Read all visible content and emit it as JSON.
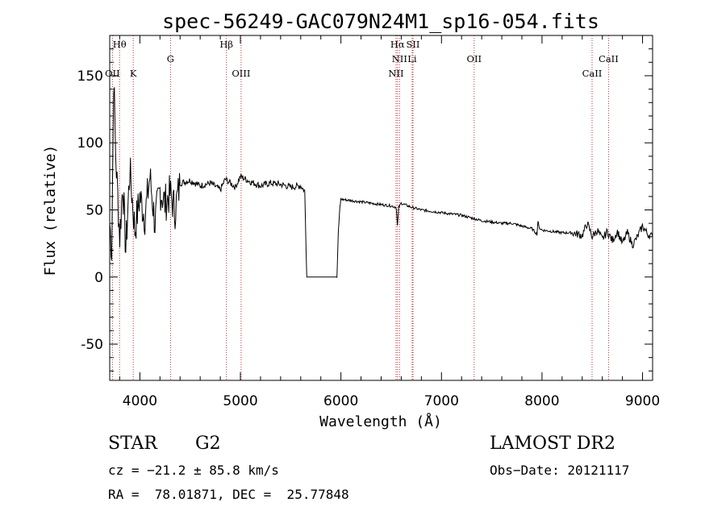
{
  "chart_data": {
    "type": "line",
    "title": "spec-56249-GAC079N24M1_sp16-054.fits",
    "xlabel": "Wavelength (Å)",
    "ylabel": "Flux (relative)",
    "xlim": [
      3700,
      9100
    ],
    "ylim": [
      -77,
      180
    ],
    "xticks": [
      4000,
      5000,
      6000,
      7000,
      8000,
      9000
    ],
    "yticks": [
      -50,
      0,
      50,
      100,
      150
    ],
    "grid": false,
    "series": [
      {
        "color": "#000000",
        "x": [
          3700,
          3720,
          3740,
          3760,
          3780,
          3800,
          3830,
          3860,
          3900,
          3950,
          4000,
          4050,
          4100,
          4150,
          4200,
          4250,
          4300,
          4350,
          4400,
          4500,
          4600,
          4700,
          4800,
          4850,
          4900,
          4950,
          5000,
          5100,
          5200,
          5300,
          5400,
          5500,
          5600,
          5640,
          5660,
          5700,
          5800,
          5900,
          5960,
          5975,
          5990,
          6000,
          6100,
          6200,
          6300,
          6400,
          6500,
          6550,
          6562,
          6575,
          6600,
          6700,
          6800,
          6900,
          7000,
          7100,
          7200,
          7300,
          7400,
          7500,
          7600,
          7700,
          7800,
          7900,
          7950,
          7960,
          7970,
          8000,
          8100,
          8200,
          8300,
          8400,
          8450,
          8500,
          8550,
          8600,
          8650,
          8700,
          8750,
          8800,
          8850,
          8900,
          8950,
          9000,
          9050,
          9100
        ],
        "y": [
          40,
          20,
          150,
          90,
          60,
          30,
          70,
          20,
          80,
          35,
          60,
          45,
          75,
          40,
          65,
          55,
          62,
          50,
          70,
          72,
          68,
          70,
          65,
          73,
          70,
          67,
          75,
          71,
          68,
          70,
          69,
          67,
          68,
          64,
          0,
          0,
          0,
          0,
          0,
          35,
          52,
          58,
          57,
          56,
          55,
          54,
          53,
          52,
          38,
          52,
          55,
          52,
          50,
          49,
          48,
          47,
          46,
          44,
          42,
          41,
          40,
          40,
          38,
          36,
          32,
          42,
          37,
          35,
          34,
          33,
          33,
          31,
          40,
          30,
          35,
          28,
          34,
          27,
          34,
          25,
          33,
          24,
          30,
          38,
          32,
          30
        ]
      }
    ],
    "lines": [
      {
        "label": "Hθ",
        "x": 3798
      },
      {
        "label": "OII",
        "x": 3727
      },
      {
        "label": "K",
        "x": 3934
      },
      {
        "label": "G",
        "x": 4305
      },
      {
        "label": "Hβ",
        "x": 4861
      },
      {
        "label": "OIII",
        "x": 5007
      },
      {
        "label": "Hα",
        "x": 6563
      },
      {
        "label": "NII",
        "x": 6583
      },
      {
        "label": "NII",
        "x": 6548
      },
      {
        "label": "SII",
        "x": 6717
      },
      {
        "label": "Li",
        "x": 6708
      },
      {
        "label": "OII",
        "x": 7325
      },
      {
        "label": "CaII",
        "x": 8498
      },
      {
        "label": "CaII",
        "x": 8662
      }
    ]
  },
  "info": {
    "object_class": "STAR",
    "subclass": "G2",
    "survey": "LAMOST DR2",
    "cz": "cz = −21.2 ± 85.8 km/s",
    "obs_date": "Obs−Date: 20121117",
    "coords": "RA =  78.01871, DEC =  25.77848"
  }
}
